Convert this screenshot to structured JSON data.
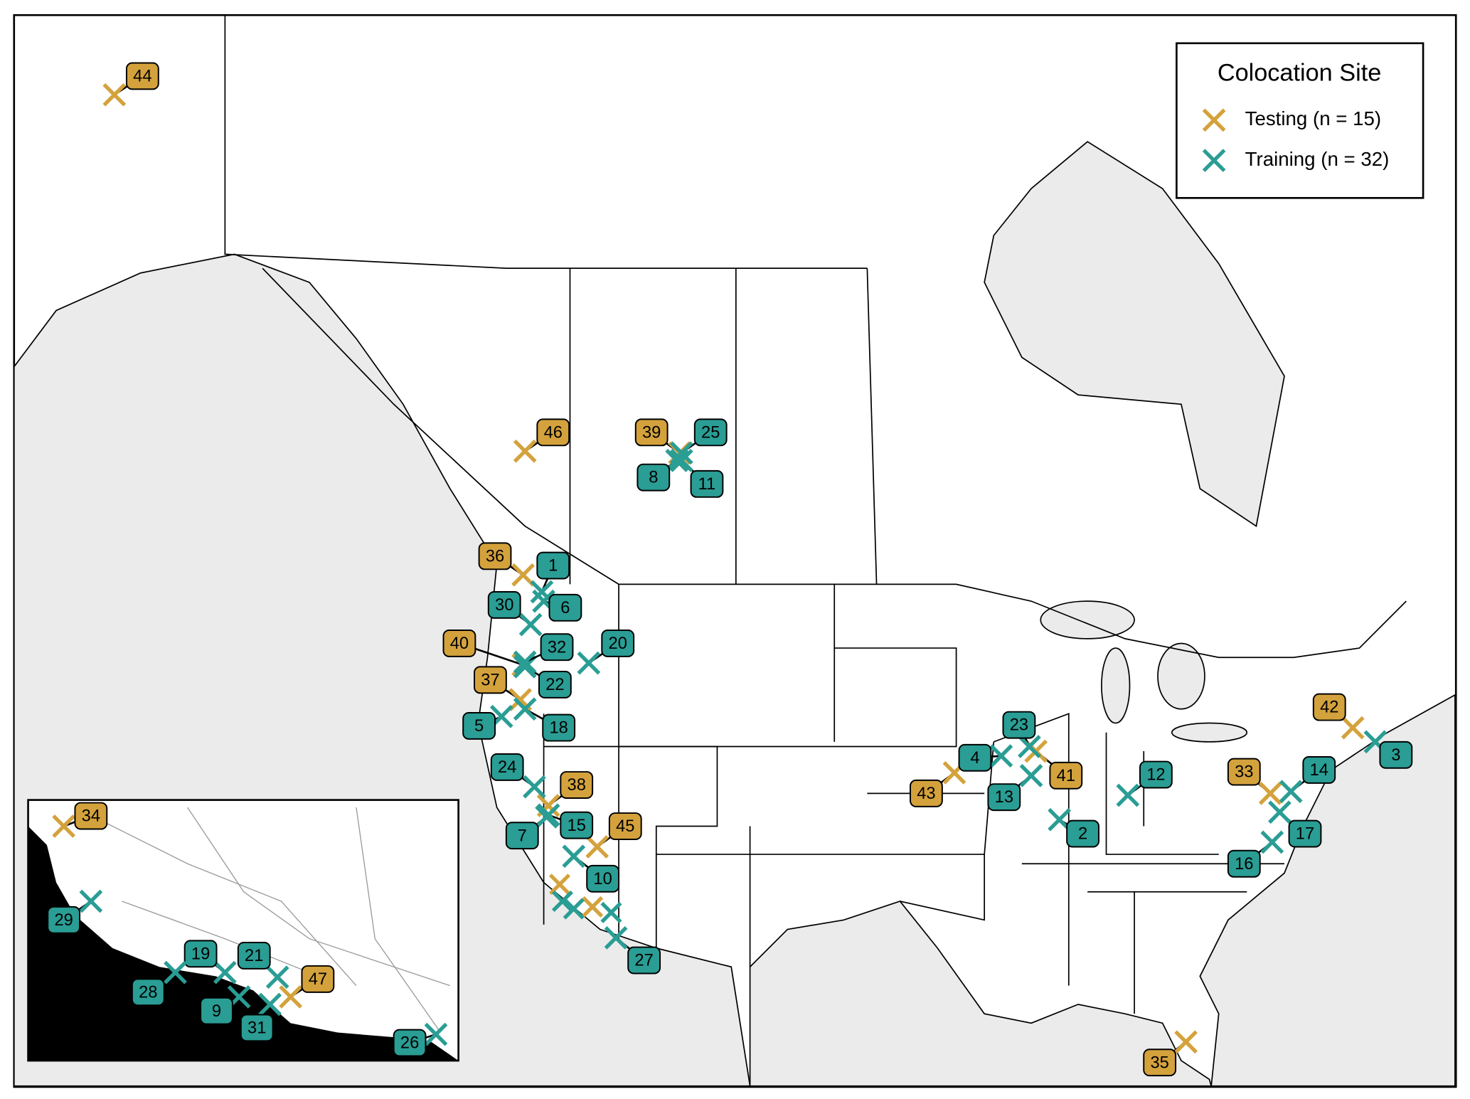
{
  "legend": {
    "title": "Colocation Site",
    "items": [
      {
        "label": "Testing (n = 15)",
        "color": "#d4a23c",
        "sites": [
          "44",
          "46",
          "39",
          "36",
          "40",
          "37",
          "38",
          "45",
          "43",
          "41",
          "42",
          "33",
          "35",
          "34",
          "47"
        ]
      },
      {
        "label": "Training (n = 32)",
        "color": "#2a9d94",
        "sites": [
          "1",
          "2",
          "3",
          "4",
          "5",
          "6",
          "7",
          "8",
          "9",
          "10",
          "11",
          "12",
          "13",
          "14",
          "15",
          "16",
          "17",
          "18",
          "19",
          "20",
          "21",
          "22",
          "23",
          "24",
          "25",
          "26",
          "27",
          "28",
          "29",
          "30",
          "31",
          "32"
        ]
      }
    ]
  }
}
